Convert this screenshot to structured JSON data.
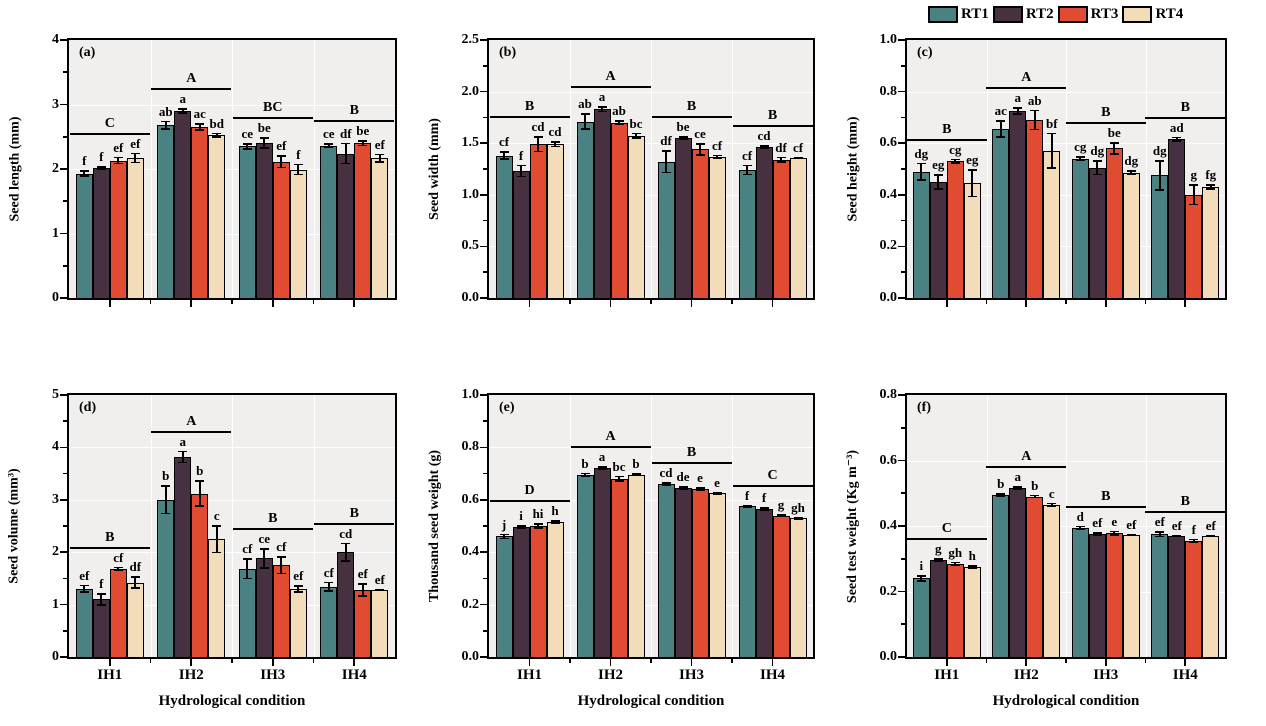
{
  "legend": {
    "items": [
      {
        "label": "RT1",
        "color": "#4a8183"
      },
      {
        "label": "RT2",
        "color": "#47303f"
      },
      {
        "label": "RT3",
        "color": "#e04b31"
      },
      {
        "label": "RT4",
        "color": "#f2dcba"
      }
    ]
  },
  "chart_data": {
    "type": "bar",
    "categories": [
      "IH1",
      "IH2",
      "IH3",
      "IH4"
    ],
    "series_names": [
      "RT1",
      "RT2",
      "RT3",
      "RT4"
    ],
    "series_colors": [
      "#4a8183",
      "#47303f",
      "#e04b31",
      "#f2dcba"
    ],
    "xlabel": "Hydrological condition",
    "grid": true,
    "legend_position": "top-right",
    "error_bars": true,
    "panels": [
      {
        "tag": "(a)",
        "ylabel": "Seed length (mm)",
        "ylim": [
          0,
          4
        ],
        "tick_labels": [
          "0",
          "1",
          "2",
          "3",
          "4"
        ],
        "group_letters": [
          "C",
          "A",
          "BC",
          "B"
        ],
        "series": [
          {
            "name": "RT1",
            "values": [
              1.93,
              2.68,
              2.35,
              2.36
            ],
            "errors": [
              0.05,
              0.07,
              0.05,
              0.04
            ],
            "letters": [
              "f",
              "ab",
              "ce",
              "ce"
            ]
          },
          {
            "name": "RT2",
            "values": [
              2.01,
              2.9,
              2.4,
              2.24
            ],
            "errors": [
              0.03,
              0.04,
              0.09,
              0.17
            ],
            "letters": [
              "f",
              "a",
              "be",
              "df"
            ]
          },
          {
            "name": "RT3",
            "values": [
              2.13,
              2.65,
              2.11,
              2.4
            ],
            "errors": [
              0.06,
              0.06,
              0.1,
              0.05
            ],
            "letters": [
              "ef",
              "ac",
              "ef",
              "be"
            ]
          },
          {
            "name": "RT4",
            "values": [
              2.17,
              2.52,
              1.99,
              2.17
            ],
            "errors": [
              0.08,
              0.04,
              0.09,
              0.07
            ],
            "letters": [
              "ef",
              "bd",
              "f",
              "ef"
            ]
          }
        ]
      },
      {
        "tag": "(b)",
        "ylabel": "Seed width (mm)",
        "ylim": [
          0,
          2.5
        ],
        "tick_labels": [
          "0.0",
          "0.5",
          "1.0",
          "1.5",
          "2.0",
          "2.5"
        ],
        "group_letters": [
          "B",
          "A",
          "B",
          "B"
        ],
        "series": [
          {
            "name": "RT1",
            "values": [
              1.38,
              1.71,
              1.32,
              1.24
            ],
            "errors": [
              0.04,
              0.08,
              0.11,
              0.05
            ],
            "letters": [
              "cf",
              "ab",
              "df",
              "cf"
            ]
          },
          {
            "name": "RT2",
            "values": [
              1.23,
              1.83,
              1.55,
              1.46
            ],
            "errors": [
              0.06,
              0.03,
              0.02,
              0.02
            ],
            "letters": [
              "f",
              "a",
              "be",
              "cd"
            ]
          },
          {
            "name": "RT3",
            "values": [
              1.49,
              1.7,
              1.44,
              1.34
            ],
            "errors": [
              0.08,
              0.02,
              0.06,
              0.03
            ],
            "letters": [
              "cd",
              "ab",
              "ce",
              "df"
            ]
          },
          {
            "name": "RT4",
            "values": [
              1.49,
              1.57,
              1.37,
              1.36
            ],
            "errors": [
              0.03,
              0.03,
              0.02,
              0.01
            ],
            "letters": [
              "cd",
              "bc",
              "cf",
              "cf"
            ]
          }
        ]
      },
      {
        "tag": "(c)",
        "ylabel": "Seed height (mm)",
        "ylim": [
          0,
          1.0
        ],
        "tick_labels": [
          "0.0",
          "0.2",
          "0.4",
          "0.6",
          "0.8",
          "1.0"
        ],
        "group_letters": [
          "B",
          "A",
          "B",
          "B"
        ],
        "series": [
          {
            "name": "RT1",
            "values": [
              0.49,
              0.655,
              0.54,
              0.475
            ],
            "errors": [
              0.035,
              0.035,
              0.01,
              0.06
            ],
            "letters": [
              "dg",
              "ac",
              "cg",
              "dg"
            ]
          },
          {
            "name": "RT2",
            "values": [
              0.45,
              0.725,
              0.505,
              0.615
            ],
            "errors": [
              0.03,
              0.015,
              0.03,
              0.01
            ],
            "letters": [
              "eg",
              "a",
              "dg",
              "ad"
            ]
          },
          {
            "name": "RT3",
            "values": [
              0.53,
              0.69,
              0.58,
              0.4
            ],
            "errors": [
              0.01,
              0.04,
              0.025,
              0.04
            ],
            "letters": [
              "cg",
              "ab",
              "be",
              "g"
            ]
          },
          {
            "name": "RT4",
            "values": [
              0.445,
              0.57,
              0.485,
              0.43
            ],
            "errors": [
              0.055,
              0.07,
              0.01,
              0.01
            ],
            "letters": [
              "eg",
              "bf",
              "dg",
              "fg"
            ]
          }
        ]
      },
      {
        "tag": "(d)",
        "ylabel": "Seed volume (mm³)",
        "ylim": [
          0,
          5
        ],
        "tick_labels": [
          "0",
          "1",
          "2",
          "3",
          "4",
          "5"
        ],
        "group_letters": [
          "B",
          "A",
          "B",
          "B"
        ],
        "series": [
          {
            "name": "RT1",
            "values": [
              1.3,
              3.0,
              1.68,
              1.34
            ],
            "errors": [
              0.08,
              0.28,
              0.2,
              0.1
            ],
            "letters": [
              "ef",
              "b",
              "cf",
              "cf"
            ]
          },
          {
            "name": "RT2",
            "values": [
              1.1,
              3.82,
              1.88,
              2.0
            ],
            "errors": [
              0.12,
              0.12,
              0.2,
              0.18
            ],
            "letters": [
              "f",
              "a",
              "ce",
              "cd"
            ]
          },
          {
            "name": "RT3",
            "values": [
              1.68,
              3.12,
              1.75,
              1.28
            ],
            "errors": [
              0.04,
              0.25,
              0.17,
              0.13
            ],
            "letters": [
              "cf",
              "b",
              "cf",
              "ef"
            ]
          },
          {
            "name": "RT4",
            "values": [
              1.42,
              2.25,
              1.3,
              1.27
            ],
            "errors": [
              0.12,
              0.27,
              0.07,
              0.02
            ],
            "letters": [
              "df",
              "c",
              "ef",
              "ef"
            ]
          }
        ]
      },
      {
        "tag": "(e)",
        "ylabel": "Thousand seed weight (g)",
        "ylim": [
          0,
          1.0
        ],
        "tick_labels": [
          "0.0",
          "0.2",
          "0.4",
          "0.6",
          "0.8",
          "1.0"
        ],
        "group_letters": [
          "D",
          "A",
          "B",
          "C"
        ],
        "series": [
          {
            "name": "RT1",
            "values": [
              0.46,
              0.695,
              0.66,
              0.575
            ],
            "errors": [
              0.01,
              0.008,
              0.008,
              0.006
            ],
            "letters": [
              "j",
              "b",
              "cd",
              "f"
            ]
          },
          {
            "name": "RT2",
            "values": [
              0.495,
              0.72,
              0.645,
              0.565
            ],
            "errors": [
              0.008,
              0.008,
              0.006,
              0.006
            ],
            "letters": [
              "i",
              "a",
              "de",
              "f"
            ]
          },
          {
            "name": "RT3",
            "values": [
              0.5,
              0.68,
              0.64,
              0.54
            ],
            "errors": [
              0.01,
              0.012,
              0.008,
              0.006
            ],
            "letters": [
              "hi",
              "bc",
              "e",
              "g"
            ]
          },
          {
            "name": "RT4",
            "values": [
              0.515,
              0.695,
              0.625,
              0.53
            ],
            "errors": [
              0.008,
              0.006,
              0.006,
              0.006
            ],
            "letters": [
              "h",
              "b",
              "e",
              "gh"
            ]
          }
        ]
      },
      {
        "tag": "(f)",
        "ylabel": "Seed test weight (Kg m⁻³)",
        "ylim": [
          0,
          0.8
        ],
        "tick_labels": [
          "0.0",
          "0.2",
          "0.4",
          "0.6",
          "0.8"
        ],
        "group_letters": [
          "C",
          "A",
          "B",
          "B"
        ],
        "series": [
          {
            "name": "RT1",
            "values": [
              0.24,
              0.495,
              0.395,
              0.375
            ],
            "errors": [
              0.01,
              0.006,
              0.006,
              0.01
            ],
            "letters": [
              "i",
              "b",
              "d",
              "ef"
            ]
          },
          {
            "name": "RT2",
            "values": [
              0.295,
              0.515,
              0.375,
              0.37
            ],
            "errors": [
              0.006,
              0.006,
              0.006,
              0.004
            ],
            "letters": [
              "g",
              "a",
              "ef",
              "ef"
            ]
          },
          {
            "name": "RT3",
            "values": [
              0.285,
              0.49,
              0.378,
              0.355
            ],
            "errors": [
              0.006,
              0.006,
              0.008,
              0.006
            ],
            "letters": [
              "gh",
              "b",
              "e",
              "f"
            ]
          },
          {
            "name": "RT4",
            "values": [
              0.275,
              0.465,
              0.372,
              0.37
            ],
            "errors": [
              0.006,
              0.006,
              0.004,
              0.004
            ],
            "letters": [
              "h",
              "c",
              "ef",
              "ef"
            ]
          }
        ]
      }
    ]
  }
}
